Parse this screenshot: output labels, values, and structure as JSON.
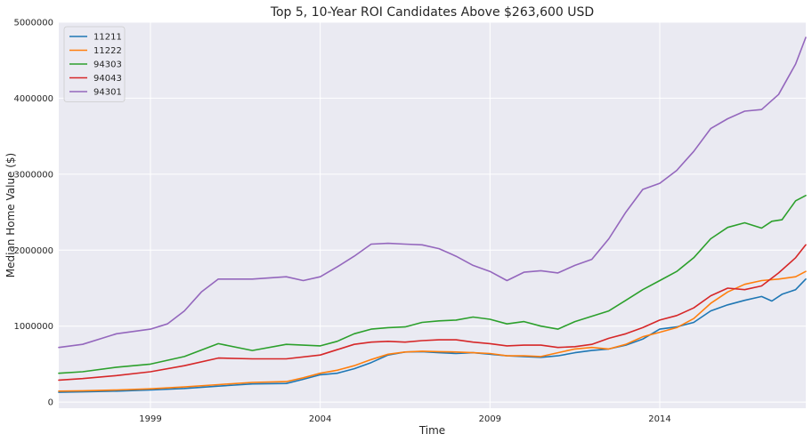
{
  "chart_data": {
    "type": "line",
    "title": "Top 5, 10-Year ROI Candidates Above $263,600 USD",
    "xlabel": "Time",
    "ylabel": "Median Home Value ($)",
    "xlim": [
      1996.3,
      2018.3
    ],
    "ylim": [
      -80000,
      5000000
    ],
    "xticks": [
      1999,
      2004,
      2009,
      2014
    ],
    "xtick_labels": [
      "1999",
      "2004",
      "2009",
      "2014"
    ],
    "yticks": [
      0,
      1000000,
      2000000,
      3000000,
      4000000,
      5000000
    ],
    "ytick_labels": [
      "0",
      "1000000",
      "2000000",
      "3000000",
      "4000000",
      "5000000"
    ],
    "grid": true,
    "legend_position": "top-left",
    "series": [
      {
        "name": "11211",
        "color": "#1f77b4",
        "points": [
          [
            1996.3,
            130000
          ],
          [
            1997,
            135000
          ],
          [
            1998,
            145000
          ],
          [
            1999,
            160000
          ],
          [
            2000,
            180000
          ],
          [
            2001,
            210000
          ],
          [
            2002,
            240000
          ],
          [
            2003,
            245000
          ],
          [
            2003.5,
            300000
          ],
          [
            2004,
            360000
          ],
          [
            2004.5,
            380000
          ],
          [
            2005,
            440000
          ],
          [
            2005.5,
            520000
          ],
          [
            2006,
            620000
          ],
          [
            2006.5,
            660000
          ],
          [
            2007,
            665000
          ],
          [
            2007.5,
            650000
          ],
          [
            2008,
            640000
          ],
          [
            2008.5,
            650000
          ],
          [
            2009,
            630000
          ],
          [
            2009.5,
            610000
          ],
          [
            2010,
            600000
          ],
          [
            2010.5,
            590000
          ],
          [
            2011,
            610000
          ],
          [
            2011.5,
            650000
          ],
          [
            2012,
            680000
          ],
          [
            2012.5,
            700000
          ],
          [
            2013,
            750000
          ],
          [
            2013.5,
            830000
          ],
          [
            2014,
            960000
          ],
          [
            2014.5,
            990000
          ],
          [
            2015,
            1050000
          ],
          [
            2015.5,
            1200000
          ],
          [
            2016,
            1280000
          ],
          [
            2016.5,
            1340000
          ],
          [
            2017,
            1390000
          ],
          [
            2017.3,
            1330000
          ],
          [
            2017.6,
            1420000
          ],
          [
            2018,
            1480000
          ],
          [
            2018.3,
            1620000
          ]
        ]
      },
      {
        "name": "11222",
        "color": "#ff7f0e",
        "points": [
          [
            1996.3,
            145000
          ],
          [
            1997,
            150000
          ],
          [
            1998,
            160000
          ],
          [
            1999,
            175000
          ],
          [
            2000,
            200000
          ],
          [
            2001,
            230000
          ],
          [
            2002,
            260000
          ],
          [
            2003,
            270000
          ],
          [
            2003.5,
            320000
          ],
          [
            2004,
            380000
          ],
          [
            2004.5,
            420000
          ],
          [
            2005,
            480000
          ],
          [
            2005.5,
            560000
          ],
          [
            2006,
            630000
          ],
          [
            2006.5,
            660000
          ],
          [
            2007,
            670000
          ],
          [
            2007.5,
            665000
          ],
          [
            2008,
            660000
          ],
          [
            2008.5,
            650000
          ],
          [
            2009,
            640000
          ],
          [
            2009.5,
            610000
          ],
          [
            2010,
            610000
          ],
          [
            2010.5,
            600000
          ],
          [
            2011,
            650000
          ],
          [
            2011.5,
            700000
          ],
          [
            2012,
            720000
          ],
          [
            2012.5,
            700000
          ],
          [
            2013,
            760000
          ],
          [
            2013.5,
            860000
          ],
          [
            2014,
            920000
          ],
          [
            2014.5,
            980000
          ],
          [
            2015,
            1100000
          ],
          [
            2015.5,
            1300000
          ],
          [
            2016,
            1450000
          ],
          [
            2016.5,
            1550000
          ],
          [
            2017,
            1600000
          ],
          [
            2017.5,
            1620000
          ],
          [
            2018,
            1650000
          ],
          [
            2018.3,
            1720000
          ]
        ]
      },
      {
        "name": "94303",
        "color": "#2ca02c",
        "points": [
          [
            1996.3,
            380000
          ],
          [
            1997,
            400000
          ],
          [
            1998,
            460000
          ],
          [
            1999,
            500000
          ],
          [
            2000,
            600000
          ],
          [
            2001,
            770000
          ],
          [
            2002,
            680000
          ],
          [
            2003,
            760000
          ],
          [
            2004,
            740000
          ],
          [
            2004.5,
            800000
          ],
          [
            2005,
            900000
          ],
          [
            2005.5,
            960000
          ],
          [
            2006,
            980000
          ],
          [
            2006.5,
            990000
          ],
          [
            2007,
            1050000
          ],
          [
            2007.5,
            1070000
          ],
          [
            2008,
            1080000
          ],
          [
            2008.5,
            1120000
          ],
          [
            2009,
            1090000
          ],
          [
            2009.5,
            1030000
          ],
          [
            2010,
            1060000
          ],
          [
            2010.5,
            1000000
          ],
          [
            2011,
            960000
          ],
          [
            2011.5,
            1060000
          ],
          [
            2012,
            1130000
          ],
          [
            2012.5,
            1200000
          ],
          [
            2013,
            1340000
          ],
          [
            2013.5,
            1480000
          ],
          [
            2014,
            1600000
          ],
          [
            2014.5,
            1720000
          ],
          [
            2015,
            1900000
          ],
          [
            2015.5,
            2150000
          ],
          [
            2016,
            2300000
          ],
          [
            2016.5,
            2360000
          ],
          [
            2017,
            2290000
          ],
          [
            2017.3,
            2380000
          ],
          [
            2017.6,
            2400000
          ],
          [
            2018,
            2650000
          ],
          [
            2018.3,
            2720000
          ]
        ]
      },
      {
        "name": "94043",
        "color": "#d62728",
        "points": [
          [
            1996.3,
            290000
          ],
          [
            1997,
            310000
          ],
          [
            1998,
            350000
          ],
          [
            1999,
            400000
          ],
          [
            2000,
            480000
          ],
          [
            2001,
            580000
          ],
          [
            2002,
            570000
          ],
          [
            2003,
            570000
          ],
          [
            2004,
            620000
          ],
          [
            2004.5,
            690000
          ],
          [
            2005,
            760000
          ],
          [
            2005.5,
            790000
          ],
          [
            2006,
            800000
          ],
          [
            2006.5,
            790000
          ],
          [
            2007,
            810000
          ],
          [
            2007.5,
            820000
          ],
          [
            2008,
            820000
          ],
          [
            2008.5,
            790000
          ],
          [
            2009,
            770000
          ],
          [
            2009.5,
            740000
          ],
          [
            2010,
            750000
          ],
          [
            2010.5,
            750000
          ],
          [
            2011,
            720000
          ],
          [
            2011.5,
            730000
          ],
          [
            2012,
            760000
          ],
          [
            2012.5,
            840000
          ],
          [
            2013,
            900000
          ],
          [
            2013.5,
            980000
          ],
          [
            2014,
            1080000
          ],
          [
            2014.5,
            1140000
          ],
          [
            2015,
            1240000
          ],
          [
            2015.5,
            1400000
          ],
          [
            2016,
            1500000
          ],
          [
            2016.5,
            1480000
          ],
          [
            2017,
            1530000
          ],
          [
            2017.5,
            1700000
          ],
          [
            2018,
            1900000
          ],
          [
            2018.3,
            2070000
          ]
        ]
      },
      {
        "name": "94301",
        "color": "#9467bd",
        "points": [
          [
            1996.3,
            720000
          ],
          [
            1997,
            760000
          ],
          [
            1998,
            900000
          ],
          [
            1999,
            960000
          ],
          [
            1999.5,
            1030000
          ],
          [
            2000,
            1200000
          ],
          [
            2000.5,
            1450000
          ],
          [
            2001,
            1620000
          ],
          [
            2002,
            1620000
          ],
          [
            2003,
            1650000
          ],
          [
            2003.5,
            1600000
          ],
          [
            2004,
            1650000
          ],
          [
            2004.5,
            1780000
          ],
          [
            2005,
            1920000
          ],
          [
            2005.5,
            2080000
          ],
          [
            2006,
            2090000
          ],
          [
            2006.5,
            2080000
          ],
          [
            2007,
            2070000
          ],
          [
            2007.5,
            2020000
          ],
          [
            2008,
            1920000
          ],
          [
            2008.5,
            1800000
          ],
          [
            2009,
            1720000
          ],
          [
            2009.5,
            1600000
          ],
          [
            2010,
            1710000
          ],
          [
            2010.5,
            1730000
          ],
          [
            2011,
            1700000
          ],
          [
            2011.5,
            1800000
          ],
          [
            2012,
            1880000
          ],
          [
            2012.5,
            2150000
          ],
          [
            2013,
            2500000
          ],
          [
            2013.5,
            2800000
          ],
          [
            2014,
            2880000
          ],
          [
            2014.5,
            3050000
          ],
          [
            2015,
            3300000
          ],
          [
            2015.5,
            3600000
          ],
          [
            2016,
            3730000
          ],
          [
            2016.5,
            3830000
          ],
          [
            2017,
            3850000
          ],
          [
            2017.5,
            4050000
          ],
          [
            2018,
            4450000
          ],
          [
            2018.3,
            4800000
          ]
        ]
      }
    ]
  }
}
